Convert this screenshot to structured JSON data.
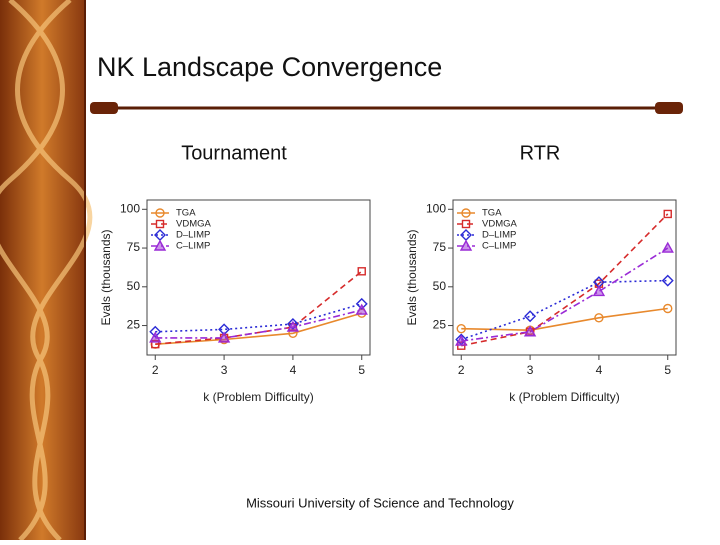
{
  "title": "NK Landscape Convergence",
  "footer": "Missouri University of Science and Technology",
  "chart_data": [
    {
      "type": "line",
      "title": "Tournament",
      "x_label": "k (Problem Difficulty)",
      "y_label": "Evals (thousands)",
      "x": [
        2,
        3,
        4,
        5
      ],
      "xlim": [
        1.88,
        5.12
      ],
      "xticks": [
        2,
        3,
        4,
        5
      ],
      "ylim": [
        6,
        106
      ],
      "yticks": [
        25,
        50,
        75,
        100
      ],
      "legend": "upper left",
      "series": [
        {
          "name": "TGA",
          "color": "#e8892d",
          "marker": "circle",
          "dash": "solid",
          "values": [
            13,
            16,
            20,
            33
          ]
        },
        {
          "name": "VDMGA",
          "color": "#d62b2b",
          "marker": "square",
          "dash": "dashed",
          "values": [
            13,
            17,
            24,
            60
          ]
        },
        {
          "name": "D–LIMP",
          "color": "#2b2bd6",
          "marker": "diamond",
          "dash": "dotted",
          "values": [
            21,
            22.5,
            26,
            39
          ]
        },
        {
          "name": "C–LIMP",
          "color": "#9a2bd6",
          "marker": "triangle",
          "dash": "dashdot",
          "values": [
            17,
            17,
            24,
            35
          ]
        }
      ]
    },
    {
      "type": "line",
      "title": "RTR",
      "x_label": "k (Problem Difficulty)",
      "y_label": "Evals (thousands)",
      "x": [
        2,
        3,
        4,
        5
      ],
      "xlim": [
        1.88,
        5.12
      ],
      "xticks": [
        2,
        3,
        4,
        5
      ],
      "ylim": [
        6,
        106
      ],
      "yticks": [
        25,
        50,
        75,
        100
      ],
      "legend": "upper left",
      "series": [
        {
          "name": "TGA",
          "color": "#e8892d",
          "marker": "circle",
          "dash": "solid",
          "values": [
            23,
            22,
            30,
            36
          ]
        },
        {
          "name": "VDMGA",
          "color": "#d62b2b",
          "marker": "square",
          "dash": "dashed",
          "values": [
            12,
            21,
            52,
            97
          ]
        },
        {
          "name": "D–LIMP",
          "color": "#2b2bd6",
          "marker": "diamond",
          "dash": "dotted",
          "values": [
            16,
            31,
            53,
            54
          ]
        },
        {
          "name": "C–LIMP",
          "color": "#9a2bd6",
          "marker": "triangle",
          "dash": "dashdot",
          "values": [
            15,
            21,
            47,
            75
          ]
        }
      ]
    }
  ]
}
